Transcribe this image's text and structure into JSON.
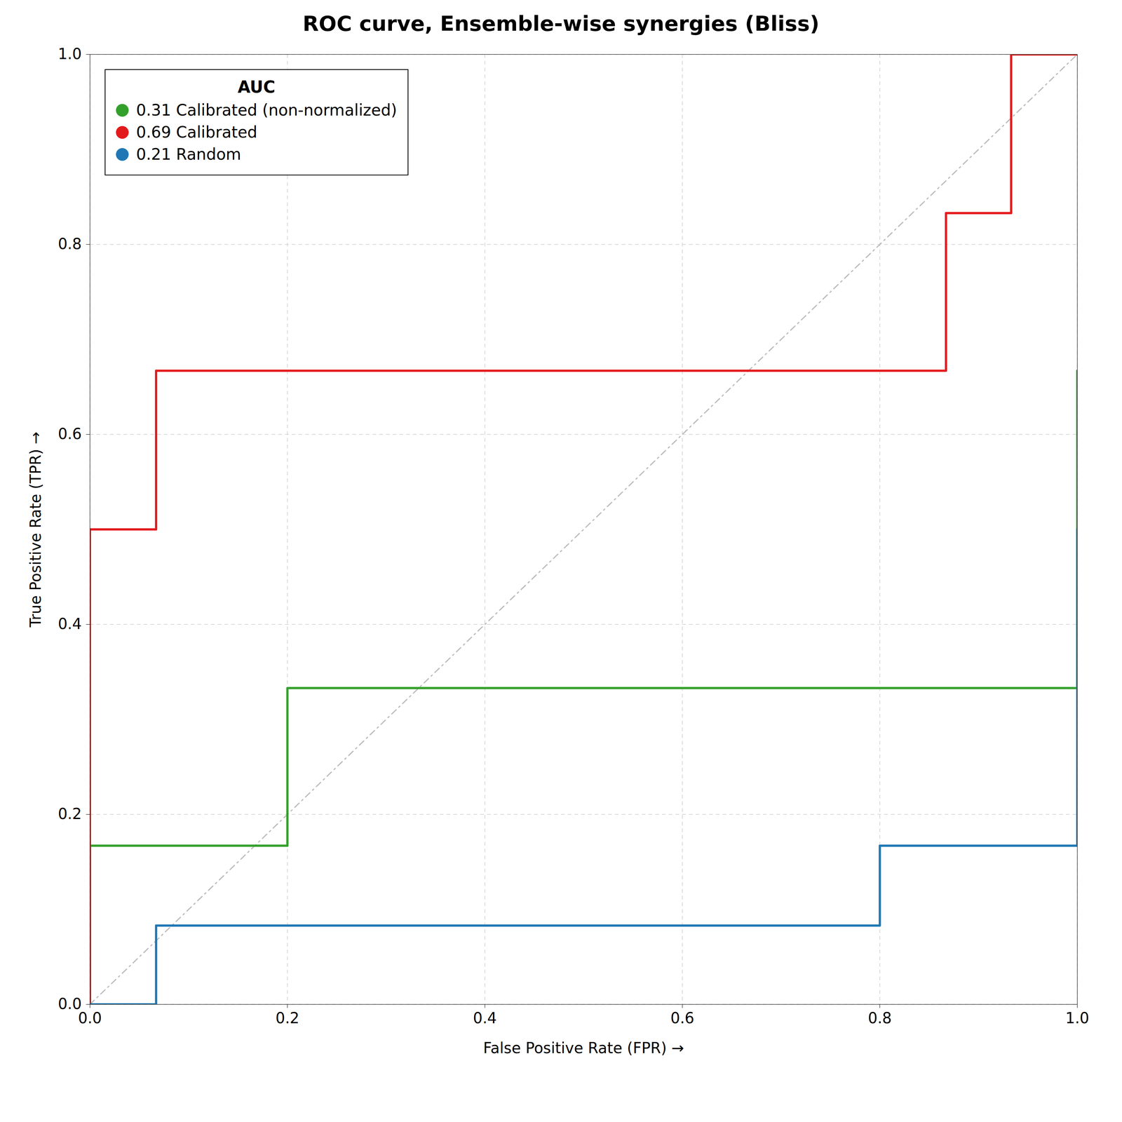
{
  "chart_data": {
    "type": "step",
    "title": "ROC curve, Ensemble-wise synergies (Bliss)",
    "xlabel": "False Positive Rate (FPR)",
    "ylabel": "True Positive Rate (TPR)",
    "legend_title": "AUC",
    "series": [
      {
        "name": "0.31 Calibrated (non-normalized)",
        "color": "#33a02c",
        "line_style": "solid",
        "x": [
          0.0,
          0.0,
          0.2,
          0.8,
          1.0
        ],
        "values": [
          0.0,
          0.167,
          0.333,
          0.333,
          0.667
        ]
      },
      {
        "name": "0.69 Calibrated",
        "color": "#e31a1c",
        "line_style": "solid",
        "x": [
          0.0,
          0.0,
          0.067,
          0.2,
          0.867,
          0.933,
          1.0
        ],
        "values": [
          0.0,
          0.5,
          0.667,
          0.667,
          0.833,
          1.0,
          1.0
        ]
      },
      {
        "name": "0.21 Random",
        "color": "#1f78b4",
        "line_style": "solid",
        "x": [
          0.0,
          0.067,
          0.8,
          1.0
        ],
        "values": [
          0.0,
          0.083,
          0.167,
          0.5
        ]
      }
    ],
    "diagonal": {
      "x": [
        0,
        1
      ],
      "values": [
        0,
        1
      ],
      "color": "#bbbbbb",
      "line_style": "dashdot"
    },
    "xlim": [
      0.0,
      1.0
    ],
    "ylim": [
      0.0,
      1.0
    ],
    "xticks": [
      {
        "value": 0.0,
        "label": "0.0"
      },
      0.2,
      0.4,
      0.6,
      0.8,
      {
        "value": 1.0,
        "label": "1.0"
      }
    ],
    "yticks": [
      {
        "value": 0.0,
        "label": "0.0"
      },
      0.2,
      0.4,
      0.6,
      0.8,
      {
        "value": 1.0,
        "label": "1.0"
      }
    ],
    "grid": true,
    "legend": "upper left"
  }
}
